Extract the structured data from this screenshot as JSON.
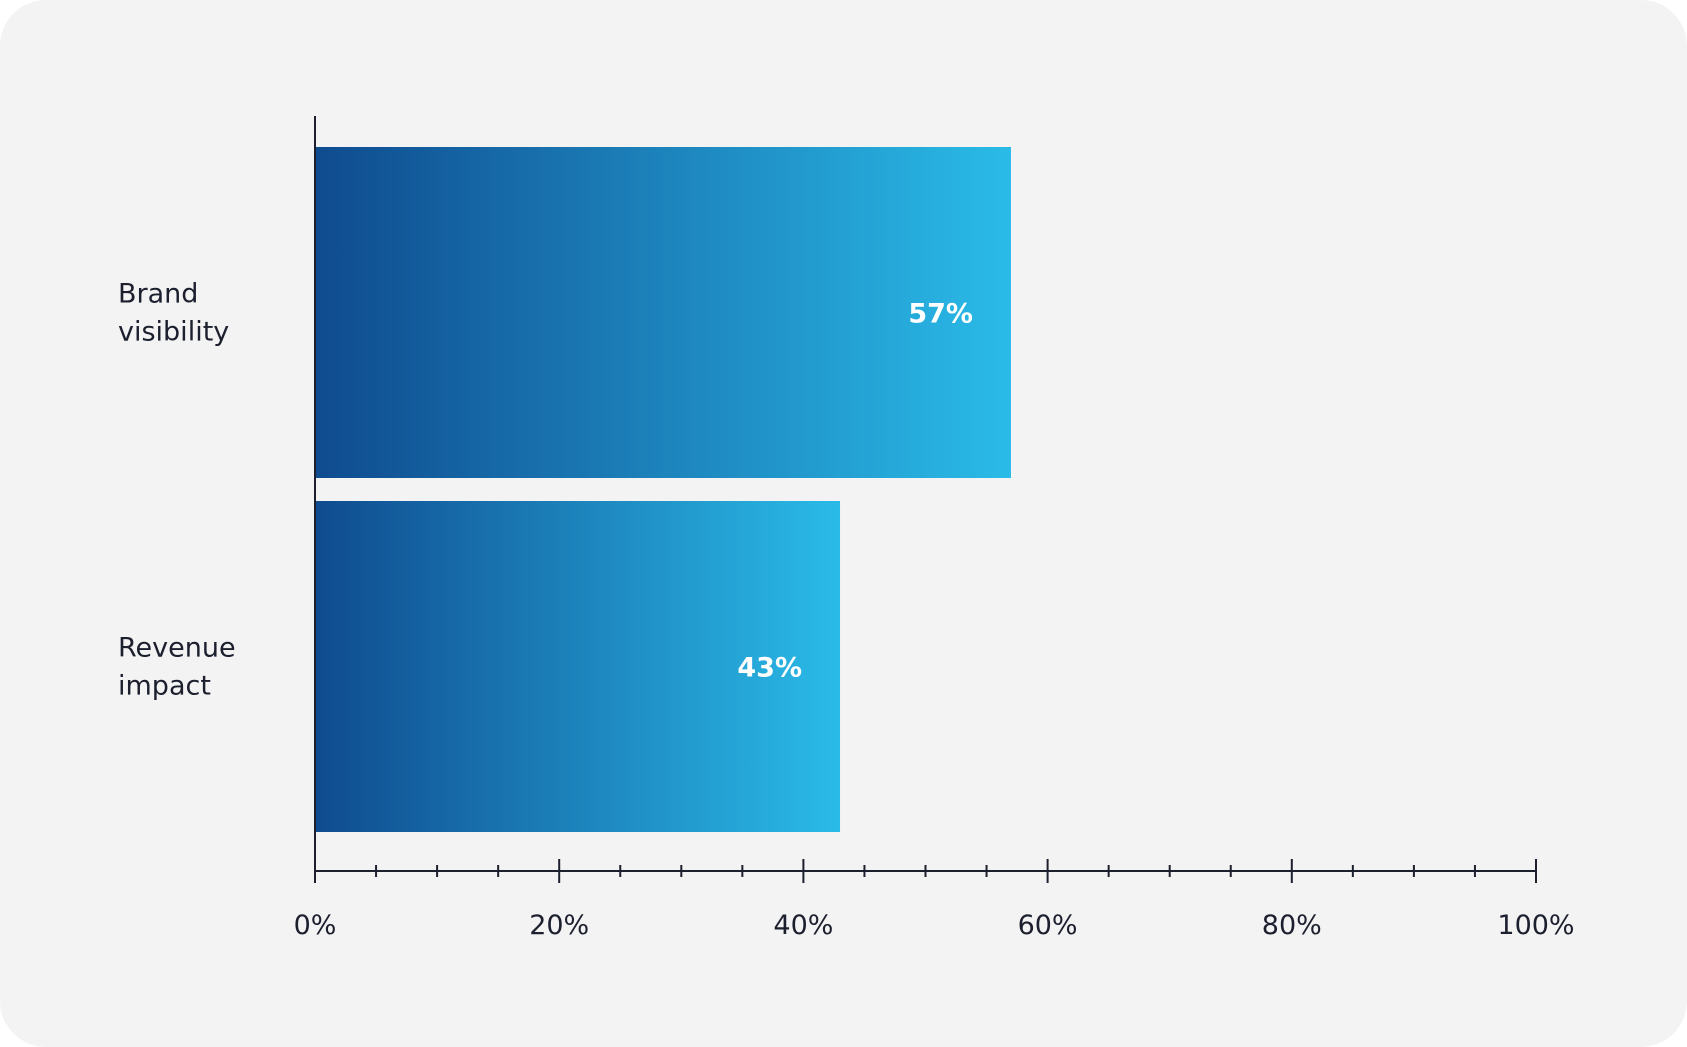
{
  "chart_data": {
    "type": "bar",
    "orientation": "horizontal",
    "categories": [
      [
        "Brand",
        "visibility"
      ],
      [
        "Revenue",
        "impact"
      ]
    ],
    "values": [
      57,
      43
    ],
    "data_labels": [
      "57%",
      "43%"
    ],
    "xlim": [
      0,
      100
    ],
    "major_ticks": [
      0,
      20,
      40,
      60,
      80,
      100
    ],
    "minor_tick_step": 5,
    "tick_labels": [
      "0%",
      "20%",
      "40%",
      "60%",
      "80%",
      "100%"
    ],
    "title": "",
    "xlabel": "",
    "ylabel": "",
    "grid": false,
    "legend": "none",
    "colors": {
      "bar_gradient_start": "#0f4b8f",
      "bar_gradient_end": "#2abbe8",
      "background": "#f3f3f3",
      "axis": "#1c1f2e",
      "text": "#1c1f2e",
      "data_label": "#ffffff"
    }
  }
}
